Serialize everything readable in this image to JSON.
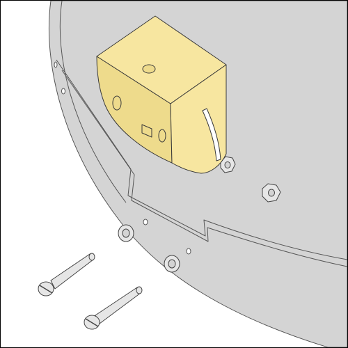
{
  "diagram": {
    "kind": "exploded-assembly-illustration",
    "colors": {
      "plate_fill": "#d4d4d4",
      "plate_stroke": "#555555",
      "block_fill": "#f7e6a0",
      "block_shade": "#eedb8c",
      "block_stroke": "#3a3a3a",
      "screw_fill": "#e6e6e6",
      "screw_stroke": "#444444",
      "frame": "#000000"
    },
    "parts": [
      {
        "id": "base-plate",
        "type": "plate"
      },
      {
        "id": "mounting-block",
        "type": "block"
      },
      {
        "id": "screw",
        "type": "screw",
        "count": 2
      },
      {
        "id": "hex-nut",
        "type": "nut",
        "count": 2
      },
      {
        "id": "washer",
        "type": "washer",
        "count": 2
      }
    ]
  }
}
